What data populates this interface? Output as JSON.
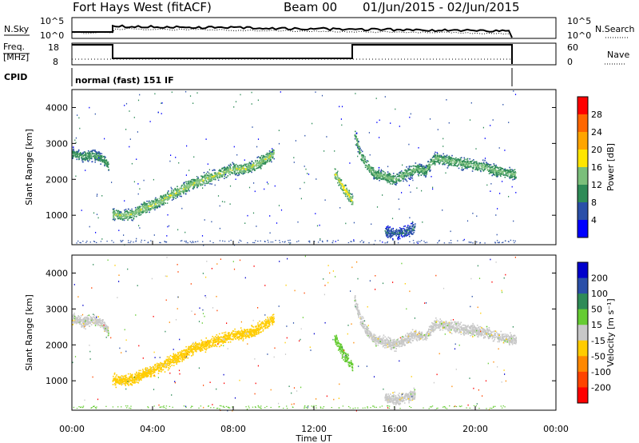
{
  "header": {
    "title": "Fort Hays West (fitACF)",
    "beam": "Beam 00",
    "dates": "01/Jun/2015 - 02/Jun/2015"
  },
  "params": {
    "nsky_label": "N.Sky",
    "nsearch_label": "N.Search",
    "freq_label": "Freq.",
    "freq_unit": "[MHz]",
    "nave_label": "Nave",
    "cpid_label": "CPID",
    "cpid_text": "normal (fast) 151 IF",
    "noise_ticks": [
      "10^5",
      "10^0"
    ],
    "freq_ticks": [
      "18",
      "8"
    ],
    "nave_ticks": [
      "60",
      "0"
    ]
  },
  "chart_data": [
    {
      "type": "heatmap",
      "panel": "power",
      "ylabel": "Slant Range [km]",
      "xlabel": "",
      "ylim": [
        180,
        4500
      ],
      "yticks": [
        1000,
        2000,
        3000,
        4000
      ],
      "xlim": [
        0,
        24
      ],
      "colorbar": {
        "label": "Power [dB]",
        "ticks": [
          "4",
          "8",
          "12",
          "16",
          "20",
          "24",
          "28"
        ],
        "colors": [
          "#0000ff",
          "#2a4fa8",
          "#2e8b57",
          "#7bbf7b",
          "#ffe600",
          "#ffa500",
          "#ff6600",
          "#ff0000"
        ]
      },
      "traces": [
        {
          "t": [
            0.0,
            0.5,
            1.0,
            1.5,
            1.8
          ],
          "range": [
            2750,
            2650,
            2700,
            2600,
            2400
          ],
          "power": 12
        },
        {
          "t": [
            2.0,
            2.5,
            3.0,
            3.5,
            4.0,
            4.5,
            5.0,
            5.5,
            6.0,
            6.5,
            7.0,
            7.5,
            8.0,
            8.5,
            9.0,
            9.5,
            10.0
          ],
          "range": [
            1050,
            1000,
            1050,
            1200,
            1300,
            1450,
            1600,
            1750,
            1900,
            2000,
            2100,
            2200,
            2300,
            2300,
            2400,
            2550,
            2750
          ],
          "power": 16
        },
        {
          "t": [
            13.0,
            13.3,
            13.6,
            13.9
          ],
          "range": [
            2200,
            1900,
            1650,
            1400
          ],
          "power": 18
        },
        {
          "t": [
            14.0,
            14.3,
            14.6,
            15.0,
            15.5,
            16.0,
            16.5,
            17.0,
            17.5,
            18.0,
            18.5,
            19.0,
            19.5,
            20.0,
            20.5,
            21.0,
            21.5,
            22.0
          ],
          "range": [
            3300,
            2700,
            2400,
            2150,
            2100,
            2000,
            2150,
            2300,
            2250,
            2600,
            2550,
            2500,
            2450,
            2400,
            2350,
            2250,
            2200,
            2150
          ],
          "power": 14
        },
        {
          "t": [
            15.5,
            16.0,
            16.5,
            17.0
          ],
          "range": [
            550,
            500,
            550,
            650
          ],
          "power": 8
        }
      ]
    },
    {
      "type": "heatmap",
      "panel": "velocity",
      "ylabel": "Slant Range [km]",
      "xlabel": "Time UT",
      "ylim": [
        180,
        4500
      ],
      "yticks": [
        1000,
        2000,
        3000,
        4000
      ],
      "xlim": [
        0,
        24
      ],
      "xticks": [
        "00:00",
        "04:00",
        "08:00",
        "12:00",
        "16:00",
        "20:00",
        "00:00"
      ],
      "colorbar": {
        "label": "Velocity [m s⁻¹]",
        "ticks": [
          "200",
          "100",
          "50",
          "15",
          "-15",
          "-50",
          "-100",
          "-200"
        ],
        "colors": [
          "#0000cc",
          "#2a4fa8",
          "#2e8b57",
          "#66cc33",
          "#c8c8c8",
          "#ffcc00",
          "#ff8800",
          "#ff4400",
          "#ff0000"
        ]
      },
      "traces": [
        {
          "t": [
            0.0,
            0.5,
            1.0,
            1.5,
            1.8
          ],
          "range": [
            2750,
            2650,
            2700,
            2600,
            2400
          ],
          "velocity": 0
        },
        {
          "t": [
            2.0,
            2.5,
            3.0,
            3.5,
            4.0,
            4.5,
            5.0,
            5.5,
            6.0,
            6.5,
            7.0,
            7.5,
            8.0,
            8.5,
            9.0,
            9.5,
            10.0
          ],
          "range": [
            1050,
            1000,
            1050,
            1200,
            1300,
            1450,
            1600,
            1750,
            1900,
            2000,
            2100,
            2200,
            2300,
            2300,
            2400,
            2550,
            2750
          ],
          "velocity": -30
        },
        {
          "t": [
            13.0,
            13.3,
            13.6,
            13.9
          ],
          "range": [
            2200,
            1900,
            1650,
            1400
          ],
          "velocity": 30
        },
        {
          "t": [
            14.0,
            14.3,
            14.6,
            15.0,
            15.5,
            16.0,
            16.5,
            17.0,
            17.5,
            18.0,
            18.5,
            19.0,
            19.5,
            20.0,
            20.5,
            21.0,
            21.5,
            22.0
          ],
          "range": [
            3300,
            2700,
            2400,
            2150,
            2100,
            2000,
            2150,
            2300,
            2250,
            2600,
            2550,
            2500,
            2450,
            2400,
            2350,
            2250,
            2200,
            2150
          ],
          "velocity": 0
        },
        {
          "t": [
            15.5,
            16.0,
            16.5,
            17.0
          ],
          "range": [
            550,
            500,
            550,
            650
          ],
          "velocity": 0
        }
      ]
    }
  ],
  "colors": {
    "frame": "#000000",
    "background": "#ffffff"
  }
}
